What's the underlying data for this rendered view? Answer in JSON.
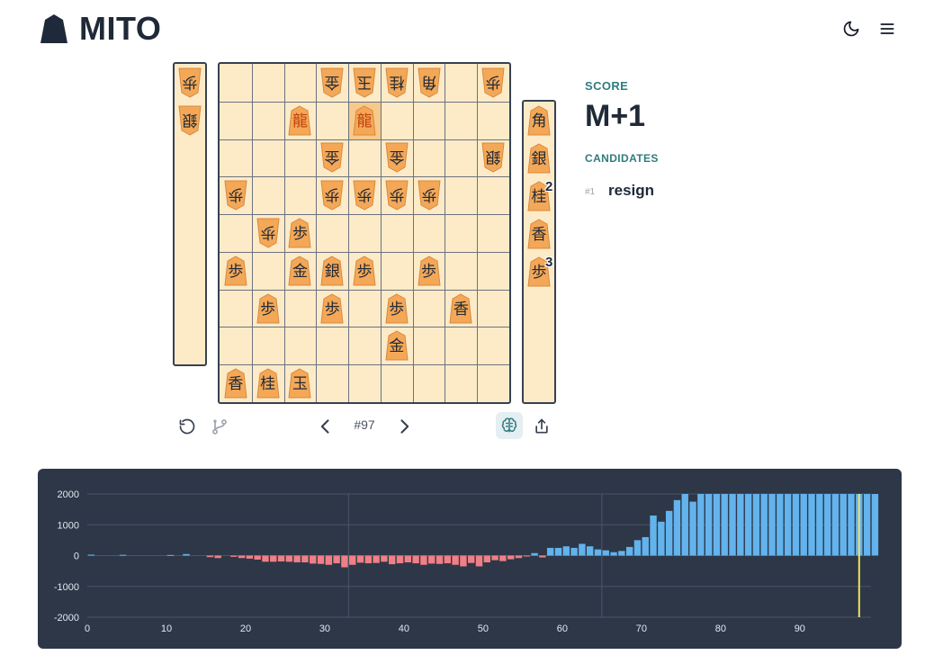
{
  "app": {
    "title": "MITO"
  },
  "header": {
    "theme_icon": "moon-icon",
    "menu_icon": "menu-icon"
  },
  "board": {
    "cells": [
      {
        "file": 4,
        "rank": 1,
        "char": "金",
        "side": "gote"
      },
      {
        "file": 5,
        "rank": 1,
        "char": "玉",
        "side": "gote"
      },
      {
        "file": 6,
        "rank": 1,
        "char": "桂",
        "side": "gote"
      },
      {
        "file": 7,
        "rank": 1,
        "char": "角",
        "side": "gote"
      },
      {
        "file": 9,
        "rank": 1,
        "char": "歩",
        "side": "gote"
      },
      {
        "file": 3,
        "rank": 2,
        "char": "龍",
        "side": "sente",
        "promoted": true
      },
      {
        "file": 5,
        "rank": 2,
        "char": "龍",
        "side": "sente",
        "promoted": true,
        "highlight": true
      },
      {
        "file": 4,
        "rank": 3,
        "char": "金",
        "side": "gote"
      },
      {
        "file": 6,
        "rank": 3,
        "char": "金",
        "side": "gote"
      },
      {
        "file": 9,
        "rank": 3,
        "char": "銀",
        "side": "gote"
      },
      {
        "file": 1,
        "rank": 4,
        "char": "歩",
        "side": "gote"
      },
      {
        "file": 4,
        "rank": 4,
        "char": "歩",
        "side": "gote"
      },
      {
        "file": 5,
        "rank": 4,
        "char": "歩",
        "side": "gote"
      },
      {
        "file": 6,
        "rank": 4,
        "char": "歩",
        "side": "gote"
      },
      {
        "file": 7,
        "rank": 4,
        "char": "歩",
        "side": "gote"
      },
      {
        "file": 2,
        "rank": 5,
        "char": "歩",
        "side": "gote"
      },
      {
        "file": 3,
        "rank": 5,
        "char": "歩",
        "side": "sente"
      },
      {
        "file": 1,
        "rank": 6,
        "char": "歩",
        "side": "sente"
      },
      {
        "file": 3,
        "rank": 6,
        "char": "金",
        "side": "sente"
      },
      {
        "file": 4,
        "rank": 6,
        "char": "銀",
        "side": "sente"
      },
      {
        "file": 5,
        "rank": 6,
        "char": "歩",
        "side": "sente"
      },
      {
        "file": 7,
        "rank": 6,
        "char": "歩",
        "side": "sente"
      },
      {
        "file": 2,
        "rank": 7,
        "char": "歩",
        "side": "sente"
      },
      {
        "file": 4,
        "rank": 7,
        "char": "歩",
        "side": "sente"
      },
      {
        "file": 6,
        "rank": 7,
        "char": "歩",
        "side": "sente"
      },
      {
        "file": 8,
        "rank": 7,
        "char": "香",
        "side": "sente"
      },
      {
        "file": 6,
        "rank": 8,
        "char": "金",
        "side": "sente"
      },
      {
        "file": 1,
        "rank": 9,
        "char": "香",
        "side": "sente"
      },
      {
        "file": 2,
        "rank": 9,
        "char": "桂",
        "side": "sente"
      },
      {
        "file": 3,
        "rank": 9,
        "char": "玉",
        "side": "sente"
      }
    ]
  },
  "gote_hand": [
    {
      "char": "歩",
      "count": ""
    },
    {
      "char": "銀",
      "count": ""
    }
  ],
  "sente_hand": [
    {
      "char": "角",
      "count": ""
    },
    {
      "char": "銀",
      "count": ""
    },
    {
      "char": "桂",
      "count": "2"
    },
    {
      "char": "香",
      "count": ""
    },
    {
      "char": "歩",
      "count": "3"
    }
  ],
  "controls": {
    "move_number": "#97",
    "reset_icon": "rotate-ccw-icon",
    "branch_icon": "git-branch-icon",
    "prev_icon": "chevron-left-icon",
    "next_icon": "chevron-right-icon",
    "ai_icon": "brain-icon",
    "share_icon": "share-icon"
  },
  "analysis": {
    "score_label": "SCORE",
    "score_value": "M+1",
    "candidates_label": "CANDIDATES",
    "candidates": [
      {
        "rank": "#1",
        "move": "resign"
      }
    ]
  },
  "colors": {
    "board_bg": "#fdebc8",
    "piece_fill": "#f4a857",
    "positive_bar": "#63b3ed",
    "negative_bar": "#f07f86",
    "current_marker": "#f6e05e",
    "chart_bg": "#2d3748",
    "accent": "#2f7d7d"
  },
  "chart_data": {
    "type": "bar",
    "ylim": [
      -2000,
      2000
    ],
    "yticks": [
      "2000",
      "1000",
      "0",
      "-1000",
      "-2000"
    ],
    "xticks": [
      "0",
      "10",
      "20",
      "30",
      "40",
      "50",
      "60",
      "70",
      "80",
      "90"
    ],
    "current_move": 97,
    "xmax": 99,
    "values": [
      30,
      0,
      0,
      0,
      25,
      0,
      0,
      0,
      0,
      0,
      20,
      0,
      50,
      0,
      0,
      -50,
      -80,
      0,
      -40,
      -80,
      -100,
      -130,
      -200,
      -200,
      -190,
      -200,
      -220,
      -220,
      -260,
      -270,
      -300,
      -250,
      -380,
      -300,
      -230,
      -250,
      -240,
      -200,
      -280,
      -250,
      -220,
      -250,
      -300,
      -260,
      -270,
      -250,
      -300,
      -350,
      -240,
      -350,
      -220,
      -150,
      -180,
      -120,
      -80,
      -20,
      80,
      -60,
      250,
      250,
      300,
      250,
      380,
      300,
      200,
      170,
      110,
      150,
      280,
      500,
      600,
      1300,
      1100,
      1450,
      1800,
      2000,
      1750,
      2000,
      2000,
      2000,
      2000,
      2000,
      2000,
      2000,
      2000,
      2000,
      2000,
      2000,
      2000,
      2000,
      2000,
      2000,
      2000,
      2000,
      2000,
      2000,
      2000,
      2000,
      2000,
      2000
    ]
  }
}
